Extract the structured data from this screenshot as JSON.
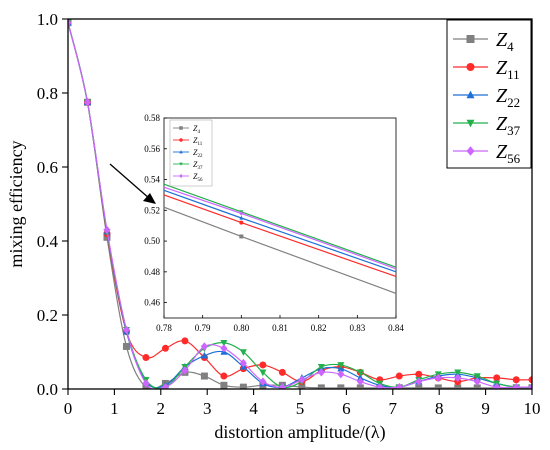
{
  "chart_data": [
    {
      "type": "line",
      "title": "",
      "xlabel": "distortion amplitude/(λ)",
      "ylabel": "mixing efficiency",
      "xlim": [
        0,
        10
      ],
      "ylim": [
        0,
        1.0
      ],
      "xticks": [
        "0",
        "1",
        "2",
        "3",
        "4",
        "5",
        "6",
        "7",
        "8",
        "9",
        "10"
      ],
      "yticks": [
        "0.0",
        "0.2",
        "0.4",
        "0.6",
        "0.8",
        "1.0"
      ],
      "legend_position": "top-right",
      "grid": false,
      "series": [
        {
          "name": "Z",
          "sub": "4",
          "color": "#808080",
          "marker": "square",
          "x": [
            0,
            0.42,
            0.84,
            1.26,
            1.68,
            2.1,
            2.52,
            2.94,
            3.36,
            3.78,
            4.2,
            4.62,
            5.04,
            5.46,
            5.88,
            6.3,
            6.72,
            7.14,
            7.56,
            7.98,
            8.4,
            8.82,
            9.24,
            9.66,
            10
          ],
          "y": [
            0.99,
            0.775,
            0.41,
            0.115,
            0.005,
            0.015,
            0.045,
            0.035,
            0.01,
            0.005,
            0.01,
            0.01,
            0.005,
            0.003,
            0.003,
            0.003,
            0.003,
            0.003,
            0.003,
            0.003,
            0.003,
            0.003,
            0.003,
            0.003,
            0.003
          ]
        },
        {
          "name": "Z",
          "sub": "11",
          "color": "#ff2a2a",
          "marker": "circle",
          "x": [
            0,
            0.42,
            0.84,
            1.26,
            1.68,
            2.1,
            2.52,
            2.94,
            3.36,
            3.78,
            4.2,
            4.62,
            5.04,
            5.46,
            5.88,
            6.3,
            6.72,
            7.14,
            7.56,
            7.98,
            8.4,
            8.82,
            9.24,
            9.66,
            10
          ],
          "y": [
            0.99,
            0.775,
            0.42,
            0.155,
            0.085,
            0.11,
            0.13,
            0.085,
            0.035,
            0.055,
            0.065,
            0.045,
            0.02,
            0.05,
            0.06,
            0.045,
            0.025,
            0.035,
            0.04,
            0.03,
            0.02,
            0.03,
            0.03,
            0.025,
            0.025
          ]
        },
        {
          "name": "Z",
          "sub": "22",
          "color": "#1e6fd6",
          "marker": "triangle",
          "x": [
            0,
            0.42,
            0.84,
            1.26,
            1.68,
            2.1,
            2.52,
            2.94,
            3.36,
            3.78,
            4.2,
            4.62,
            5.04,
            5.46,
            5.88,
            6.3,
            6.72,
            7.14,
            7.56,
            7.98,
            8.4,
            8.82,
            9.24,
            9.66,
            10
          ],
          "y": [
            0.99,
            0.775,
            0.425,
            0.155,
            0.02,
            0.01,
            0.06,
            0.09,
            0.1,
            0.06,
            0.015,
            0.005,
            0.03,
            0.055,
            0.055,
            0.03,
            0.01,
            0.005,
            0.02,
            0.035,
            0.04,
            0.03,
            0.015,
            0.005,
            0.005
          ]
        },
        {
          "name": "Z",
          "sub": "37",
          "color": "#22b14c",
          "marker": "triangle-down",
          "x": [
            0,
            0.42,
            0.84,
            1.26,
            1.68,
            2.1,
            2.52,
            2.94,
            3.36,
            3.78,
            4.2,
            4.62,
            5.04,
            5.46,
            5.88,
            6.3,
            6.72,
            7.14,
            7.56,
            7.98,
            8.4,
            8.82,
            9.24,
            9.66,
            10
          ],
          "y": [
            0.99,
            0.775,
            0.425,
            0.16,
            0.025,
            0.005,
            0.06,
            0.11,
            0.125,
            0.1,
            0.045,
            0.005,
            0.02,
            0.06,
            0.065,
            0.045,
            0.015,
            0.005,
            0.025,
            0.04,
            0.045,
            0.035,
            0.015,
            0.005,
            0.005
          ]
        },
        {
          "name": "Z",
          "sub": "56",
          "color": "#cc66ff",
          "marker": "diamond",
          "x": [
            0,
            0.42,
            0.84,
            1.26,
            1.68,
            2.1,
            2.52,
            2.94,
            3.36,
            3.78,
            4.2,
            4.62,
            5.04,
            5.46,
            5.88,
            6.3,
            6.72,
            7.14,
            7.56,
            7.98,
            8.4,
            8.82,
            9.24,
            9.66,
            10
          ],
          "y": [
            0.99,
            0.775,
            0.43,
            0.16,
            0.015,
            0.005,
            0.05,
            0.115,
            0.11,
            0.07,
            0.02,
            0.005,
            0.025,
            0.045,
            0.04,
            0.02,
            0.005,
            0.005,
            0.02,
            0.03,
            0.03,
            0.02,
            0.005,
            0.005,
            0.005
          ]
        }
      ]
    },
    {
      "type": "line",
      "title": "",
      "xlabel": "",
      "ylabel": "",
      "xlim": [
        0.78,
        0.84
      ],
      "ylim": [
        0.45,
        0.58
      ],
      "xticks": [
        "0.78",
        "0.79",
        "0.80",
        "0.81",
        "0.82",
        "0.83",
        "0.84"
      ],
      "yticks": [
        "0.46",
        "0.48",
        "0.50",
        "0.52",
        "0.54",
        "0.56",
        "0.58"
      ],
      "legend_position": "top-left",
      "grid": false,
      "series": [
        {
          "name": "Z",
          "sub": "4",
          "color": "#808080",
          "marker": "square",
          "x": [
            0.78,
            0.8,
            0.84
          ],
          "y": [
            0.522,
            0.503,
            0.466
          ]
        },
        {
          "name": "Z",
          "sub": "11",
          "color": "#ff2a2a",
          "marker": "circle",
          "x": [
            0.78,
            0.8,
            0.84
          ],
          "y": [
            0.53,
            0.512,
            0.477
          ]
        },
        {
          "name": "Z",
          "sub": "22",
          "color": "#1e6fd6",
          "marker": "triangle",
          "x": [
            0.78,
            0.8,
            0.84
          ],
          "y": [
            0.533,
            0.515,
            0.48
          ]
        },
        {
          "name": "Z",
          "sub": "37",
          "color": "#22b14c",
          "marker": "triangle-down",
          "x": [
            0.78,
            0.8,
            0.84
          ],
          "y": [
            0.537,
            0.519,
            0.483
          ]
        },
        {
          "name": "Z",
          "sub": "56",
          "color": "#cc66ff",
          "marker": "diamond",
          "x": [
            0.78,
            0.8,
            0.84
          ],
          "y": [
            0.535,
            0.518,
            0.482
          ]
        }
      ]
    }
  ]
}
